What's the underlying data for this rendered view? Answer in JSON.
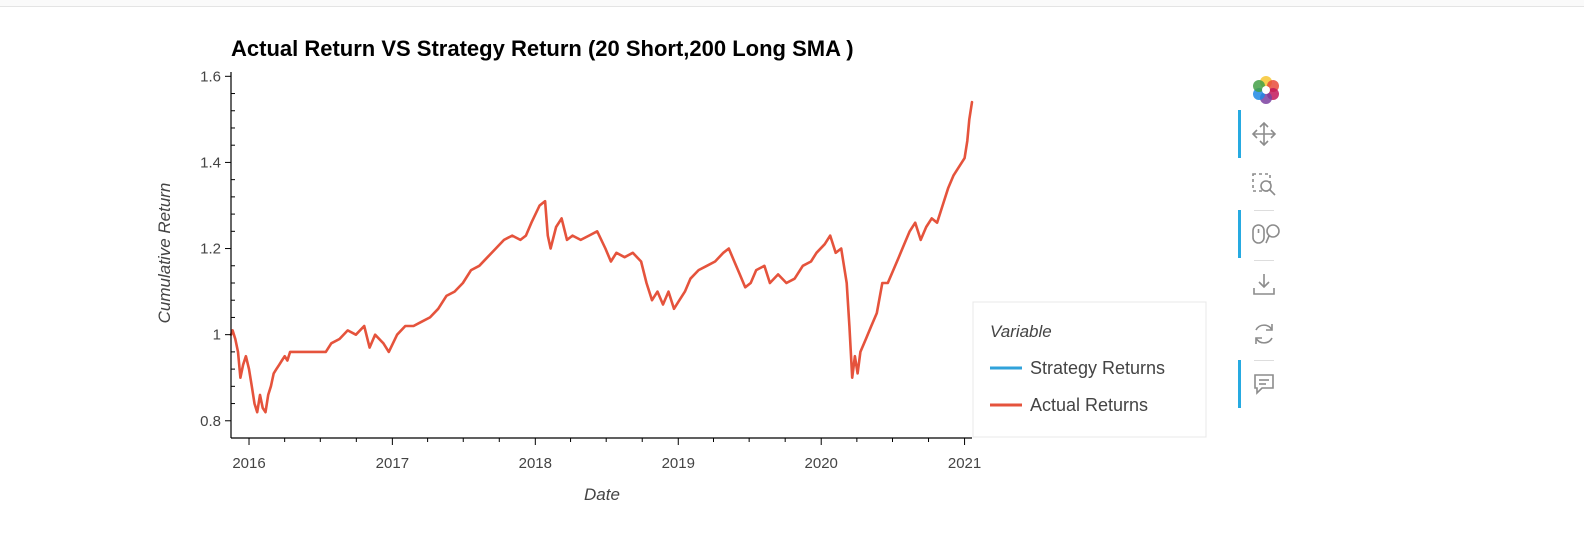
{
  "chart_data": {
    "type": "line",
    "title": "Actual Return VS Strategy Return (20 Short,200 Long SMA )",
    "xlabel": "Date",
    "ylabel": "Cumulative Return",
    "xlim": [
      "2015-11-16",
      "2021-01-20"
    ],
    "ylim": [
      0.76,
      1.61
    ],
    "xticks": [
      {
        "label": "2016",
        "date": "2016-01-01"
      },
      {
        "label": "2017",
        "date": "2017-01-01"
      },
      {
        "label": "2018",
        "date": "2018-01-01"
      },
      {
        "label": "2019",
        "date": "2019-01-01"
      },
      {
        "label": "2020",
        "date": "2020-01-01"
      },
      {
        "label": "2021",
        "date": "2021-01-01"
      }
    ],
    "yticks": [
      {
        "label": "0.8",
        "value": 0.8
      },
      {
        "label": "1",
        "value": 1.0
      },
      {
        "label": "1.2",
        "value": 1.2
      },
      {
        "label": "1.4",
        "value": 1.4
      },
      {
        "label": "1.6",
        "value": 1.6
      }
    ],
    "legend": {
      "title": "Variable",
      "position": "right"
    },
    "series": [
      {
        "name": "Strategy Returns",
        "color": "#30a2da",
        "points": []
      },
      {
        "name": "Actual Returns",
        "color": "#e5533c",
        "points": [
          [
            "2015-11-16",
            1.0
          ],
          [
            "2015-11-20",
            1.01
          ],
          [
            "2015-11-27",
            0.99
          ],
          [
            "2015-12-04",
            0.96
          ],
          [
            "2015-12-10",
            0.9
          ],
          [
            "2015-12-17",
            0.93
          ],
          [
            "2015-12-24",
            0.95
          ],
          [
            "2016-01-01",
            0.92
          ],
          [
            "2016-01-08",
            0.88
          ],
          [
            "2016-01-15",
            0.84
          ],
          [
            "2016-01-22",
            0.82
          ],
          [
            "2016-01-29",
            0.86
          ],
          [
            "2016-02-05",
            0.83
          ],
          [
            "2016-02-12",
            0.82
          ],
          [
            "2016-02-19",
            0.86
          ],
          [
            "2016-02-26",
            0.88
          ],
          [
            "2016-03-04",
            0.91
          ],
          [
            "2016-03-11",
            0.92
          ],
          [
            "2016-03-18",
            0.93
          ],
          [
            "2016-03-25",
            0.94
          ],
          [
            "2016-04-01",
            0.95
          ],
          [
            "2016-04-08",
            0.94
          ],
          [
            "2016-04-15",
            0.96
          ],
          [
            "2016-04-22",
            0.96
          ],
          [
            "2016-07-15",
            0.96
          ],
          [
            "2016-07-29",
            0.98
          ],
          [
            "2016-08-19",
            0.99
          ],
          [
            "2016-09-09",
            1.01
          ],
          [
            "2016-09-30",
            1.0
          ],
          [
            "2016-10-21",
            1.02
          ],
          [
            "2016-11-04",
            0.97
          ],
          [
            "2016-11-18",
            1.0
          ],
          [
            "2016-12-09",
            0.98
          ],
          [
            "2016-12-23",
            0.96
          ],
          [
            "2017-01-13",
            1.0
          ],
          [
            "2017-02-03",
            1.02
          ],
          [
            "2017-02-24",
            1.02
          ],
          [
            "2017-03-17",
            1.03
          ],
          [
            "2017-04-07",
            1.04
          ],
          [
            "2017-04-28",
            1.06
          ],
          [
            "2017-05-19",
            1.09
          ],
          [
            "2017-06-09",
            1.1
          ],
          [
            "2017-06-30",
            1.12
          ],
          [
            "2017-07-21",
            1.15
          ],
          [
            "2017-08-11",
            1.16
          ],
          [
            "2017-09-01",
            1.18
          ],
          [
            "2017-09-22",
            1.2
          ],
          [
            "2017-10-13",
            1.22
          ],
          [
            "2017-11-03",
            1.23
          ],
          [
            "2017-11-24",
            1.22
          ],
          [
            "2017-12-08",
            1.23
          ],
          [
            "2017-12-22",
            1.26
          ],
          [
            "2018-01-12",
            1.3
          ],
          [
            "2018-01-26",
            1.31
          ],
          [
            "2018-02-02",
            1.23
          ],
          [
            "2018-02-09",
            1.2
          ],
          [
            "2018-02-23",
            1.25
          ],
          [
            "2018-03-09",
            1.27
          ],
          [
            "2018-03-23",
            1.22
          ],
          [
            "2018-04-06",
            1.23
          ],
          [
            "2018-04-27",
            1.22
          ],
          [
            "2018-05-18",
            1.23
          ],
          [
            "2018-06-08",
            1.24
          ],
          [
            "2018-06-29",
            1.2
          ],
          [
            "2018-07-13",
            1.17
          ],
          [
            "2018-07-27",
            1.19
          ],
          [
            "2018-08-17",
            1.18
          ],
          [
            "2018-09-07",
            1.19
          ],
          [
            "2018-09-28",
            1.17
          ],
          [
            "2018-10-12",
            1.12
          ],
          [
            "2018-10-26",
            1.08
          ],
          [
            "2018-11-09",
            1.1
          ],
          [
            "2018-11-23",
            1.07
          ],
          [
            "2018-12-07",
            1.1
          ],
          [
            "2018-12-21",
            1.06
          ],
          [
            "2019-01-04",
            1.08
          ],
          [
            "2019-01-18",
            1.1
          ],
          [
            "2019-02-01",
            1.13
          ],
          [
            "2019-02-22",
            1.15
          ],
          [
            "2019-03-15",
            1.16
          ],
          [
            "2019-04-05",
            1.17
          ],
          [
            "2019-04-26",
            1.19
          ],
          [
            "2019-05-10",
            1.2
          ],
          [
            "2019-05-24",
            1.17
          ],
          [
            "2019-06-07",
            1.14
          ],
          [
            "2019-06-21",
            1.11
          ],
          [
            "2019-07-05",
            1.12
          ],
          [
            "2019-07-19",
            1.15
          ],
          [
            "2019-08-09",
            1.16
          ],
          [
            "2019-08-23",
            1.12
          ],
          [
            "2019-09-13",
            1.14
          ],
          [
            "2019-10-04",
            1.12
          ],
          [
            "2019-10-25",
            1.13
          ],
          [
            "2019-11-15",
            1.16
          ],
          [
            "2019-12-06",
            1.17
          ],
          [
            "2019-12-20",
            1.19
          ],
          [
            "2020-01-10",
            1.21
          ],
          [
            "2020-01-24",
            1.23
          ],
          [
            "2020-02-07",
            1.19
          ],
          [
            "2020-02-21",
            1.2
          ],
          [
            "2020-03-06",
            1.12
          ],
          [
            "2020-03-13",
            1.02
          ],
          [
            "2020-03-20",
            0.9
          ],
          [
            "2020-03-27",
            0.95
          ],
          [
            "2020-04-03",
            0.91
          ],
          [
            "2020-04-10",
            0.96
          ],
          [
            "2020-04-24",
            0.99
          ],
          [
            "2020-05-08",
            1.02
          ],
          [
            "2020-05-22",
            1.05
          ],
          [
            "2020-06-05",
            1.12
          ],
          [
            "2020-06-19",
            1.12
          ],
          [
            "2020-07-03",
            1.15
          ],
          [
            "2020-07-17",
            1.18
          ],
          [
            "2020-07-31",
            1.21
          ],
          [
            "2020-08-14",
            1.24
          ],
          [
            "2020-08-28",
            1.26
          ],
          [
            "2020-09-11",
            1.22
          ],
          [
            "2020-09-25",
            1.25
          ],
          [
            "2020-10-09",
            1.27
          ],
          [
            "2020-10-23",
            1.26
          ],
          [
            "2020-11-06",
            1.3
          ],
          [
            "2020-11-20",
            1.34
          ],
          [
            "2020-12-04",
            1.37
          ],
          [
            "2020-12-18",
            1.39
          ],
          [
            "2021-01-01",
            1.41
          ],
          [
            "2021-01-08",
            1.45
          ],
          [
            "2021-01-13",
            1.5
          ],
          [
            "2021-01-20",
            1.54
          ]
        ]
      }
    ]
  },
  "toolbar": {
    "items": [
      {
        "name": "logo",
        "icon": "bokeh-logo-icon"
      },
      {
        "name": "pan",
        "icon": "pan-icon",
        "active": true
      },
      {
        "name": "box-zoom",
        "icon": "box-zoom-icon",
        "active": false
      },
      {
        "name": "wheel-zoom",
        "icon": "wheel-zoom-icon",
        "active": true
      },
      {
        "name": "save",
        "icon": "save-icon",
        "active": false
      },
      {
        "name": "reset",
        "icon": "reset-icon",
        "active": false
      },
      {
        "name": "hover",
        "icon": "hover-icon",
        "active": true
      }
    ]
  }
}
